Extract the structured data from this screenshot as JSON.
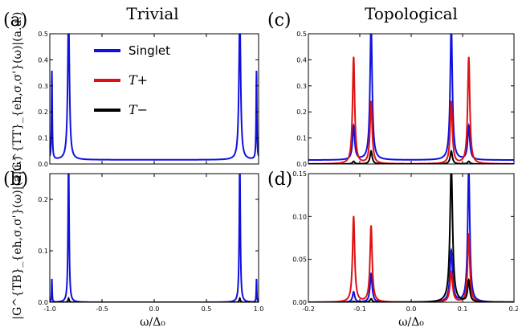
{
  "figure": {
    "title_left": "Trivial",
    "title_right": "Topological",
    "ylabel_top": "|G^{TT}_{eh,σ,σ'}(ω)|(a.u.)",
    "ylabel_bottom": "|G^{TB}_{eh,σ,σ'}(ω)|(a.u.)",
    "xlabel": "ω/Δ₀"
  },
  "legend": {
    "position": "upper-left of panel (a)",
    "entries": [
      {
        "label": "Singlet",
        "color": "#1010e0"
      },
      {
        "label": "T+",
        "color": "#e01010"
      },
      {
        "label": "T−",
        "color": "#000000"
      }
    ]
  },
  "chart_data": [
    {
      "panel": "(a)",
      "type": "line",
      "xlim": [
        -1.0,
        1.0
      ],
      "ylim": [
        0,
        0.5
      ],
      "xticks": [],
      "yticks": [
        "0.0",
        "0.1",
        "0.2",
        "0.3",
        "0.4",
        "0.5"
      ],
      "grid": false,
      "series": [
        {
          "name": "Singlet",
          "color": "#1010e0",
          "peaks": [
            [
              -0.98,
              0.34,
              0.004
            ],
            [
              -0.82,
              0.55,
              0.01
            ],
            [
              0.82,
              0.55,
              0.01
            ],
            [
              0.98,
              0.34,
              0.004
            ]
          ],
          "baseline": 0.016
        }
      ]
    },
    {
      "panel": "(b)",
      "type": "line",
      "xlim": [
        -1.0,
        1.0
      ],
      "ylim": [
        0,
        0.25
      ],
      "xticks": [
        "-1.0",
        "-0.5",
        "0.0",
        "0.5",
        "1.0"
      ],
      "yticks": [
        "0.0",
        "0.1",
        "0.2"
      ],
      "grid": false,
      "series": [
        {
          "name": "Singlet",
          "color": "#1010e0",
          "peaks": [
            [
              -0.98,
              0.045,
              0.003
            ],
            [
              -0.82,
              0.28,
              0.006
            ],
            [
              0.82,
              0.28,
              0.006
            ],
            [
              0.98,
              0.045,
              0.003
            ]
          ],
          "baseline": 0.0
        },
        {
          "name": "T−",
          "color": "#000000",
          "peaks": [
            [
              -0.82,
              0.008,
              0.006
            ],
            [
              0.82,
              0.008,
              0.006
            ]
          ],
          "baseline": 0.0
        }
      ]
    },
    {
      "panel": "(c)",
      "type": "line",
      "xlim": [
        -0.2,
        0.2
      ],
      "ylim": [
        0,
        0.5
      ],
      "xticks": [],
      "yticks": [
        "0.0",
        "0.1",
        "0.2",
        "0.3",
        "0.4",
        "0.5"
      ],
      "grid": false,
      "series": [
        {
          "name": "Singlet",
          "color": "#1010e0",
          "peaks": [
            [
              -0.112,
              0.13,
              0.0025
            ],
            [
              -0.078,
              0.52,
              0.0025
            ],
            [
              0.078,
              0.52,
              0.0025
            ],
            [
              0.112,
              0.13,
              0.0025
            ]
          ],
          "baseline": 0.015
        },
        {
          "name": "T+",
          "color": "#e01010",
          "peaks": [
            [
              -0.112,
              0.41,
              0.0025
            ],
            [
              -0.078,
              0.24,
              0.0025
            ],
            [
              0.078,
              0.24,
              0.0025
            ],
            [
              0.112,
              0.41,
              0.0025
            ]
          ],
          "baseline": 0.0
        },
        {
          "name": "T−",
          "color": "#000000",
          "peaks": [
            [
              -0.112,
              0.01,
              0.0025
            ],
            [
              -0.078,
              0.05,
              0.0025
            ],
            [
              0.078,
              0.05,
              0.0025
            ],
            [
              0.112,
              0.01,
              0.0025
            ]
          ],
          "baseline": 0.0
        }
      ]
    },
    {
      "panel": "(d)",
      "type": "line",
      "xlim": [
        -0.2,
        0.2
      ],
      "ylim": [
        0,
        0.15
      ],
      "xticks": [
        "-0.2",
        "-0.1",
        "0.0",
        "0.1",
        "0.2"
      ],
      "yticks": [
        "0.00",
        "0.05",
        "0.10",
        "0.15"
      ],
      "grid": false,
      "series": [
        {
          "name": "Singlet",
          "color": "#1010e0",
          "peaks": [
            [
              -0.112,
              0.012,
              0.0025
            ],
            [
              -0.078,
              0.033,
              0.0025
            ],
            [
              0.078,
              0.06,
              0.003
            ],
            [
              0.112,
              0.155,
              0.0025
            ]
          ],
          "baseline": 0.0
        },
        {
          "name": "T+",
          "color": "#e01010",
          "peaks": [
            [
              -0.112,
              0.1,
              0.0025
            ],
            [
              -0.078,
              0.089,
              0.0025
            ],
            [
              0.078,
              0.035,
              0.003
            ],
            [
              0.112,
              0.08,
              0.0025
            ]
          ],
          "baseline": 0.0
        },
        {
          "name": "T−",
          "color": "#000000",
          "peaks": [
            [
              -0.112,
              0.001,
              0.0025
            ],
            [
              -0.078,
              0.004,
              0.0025
            ],
            [
              0.078,
              0.16,
              0.003
            ],
            [
              0.112,
              0.025,
              0.0025
            ]
          ],
          "baseline": 0.0
        }
      ]
    }
  ]
}
